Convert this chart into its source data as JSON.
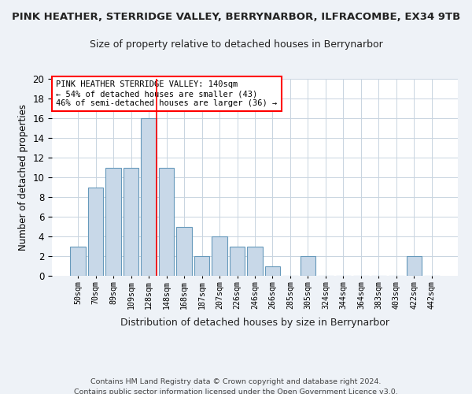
{
  "title1": "PINK HEATHER, STERRIDGE VALLEY, BERRYNARBOR, ILFRACOMBE, EX34 9TB",
  "title2": "Size of property relative to detached houses in Berrynarbor",
  "xlabel": "Distribution of detached houses by size in Berrynarbor",
  "ylabel": "Number of detached properties",
  "categories": [
    "50sqm",
    "70sqm",
    "89sqm",
    "109sqm",
    "128sqm",
    "148sqm",
    "168sqm",
    "187sqm",
    "207sqm",
    "226sqm",
    "246sqm",
    "266sqm",
    "285sqm",
    "305sqm",
    "324sqm",
    "344sqm",
    "364sqm",
    "383sqm",
    "403sqm",
    "422sqm",
    "442sqm"
  ],
  "values": [
    3,
    9,
    11,
    11,
    16,
    11,
    5,
    2,
    4,
    3,
    3,
    1,
    0,
    2,
    0,
    0,
    0,
    0,
    0,
    2,
    0
  ],
  "bar_color": "#c8d8e8",
  "bar_edge_color": "#6699bb",
  "vline_x_index": 4,
  "vline_color": "red",
  "annotation_text": "PINK HEATHER STERRIDGE VALLEY: 140sqm\n← 54% of detached houses are smaller (43)\n46% of semi-detached houses are larger (36) →",
  "annotation_box_color": "white",
  "annotation_box_edge_color": "red",
  "ylim": [
    0,
    20
  ],
  "yticks": [
    0,
    2,
    4,
    6,
    8,
    10,
    12,
    14,
    16,
    18,
    20
  ],
  "footer": "Contains HM Land Registry data © Crown copyright and database right 2024.\nContains public sector information licensed under the Open Government Licence v3.0.",
  "bg_color": "#eef2f7",
  "plot_bg_color": "#ffffff",
  "grid_color": "#c8d4e0"
}
